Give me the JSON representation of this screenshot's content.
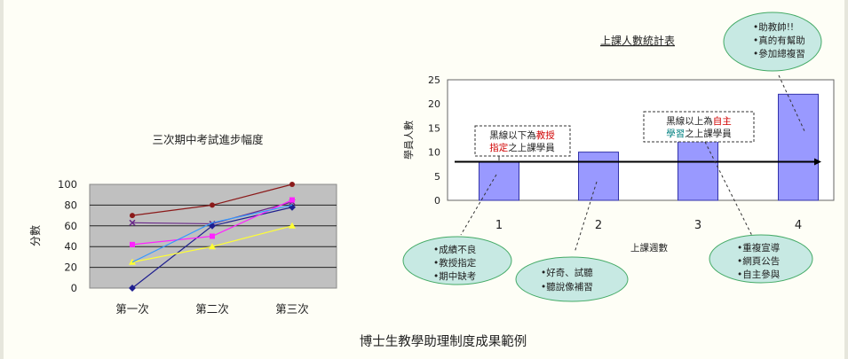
{
  "caption": "博士生教學助理制度成果範例",
  "annotations": {
    "box_below": {
      "line1_a": "黑線以下為",
      "line1_b": "教授",
      "line2_a": "指定",
      "line2_b": "之上課學員"
    },
    "box_above": {
      "line1_a": "黑線以上為",
      "line1_b": "自主",
      "line2_a": "學習",
      "line2_b": "之上課學員"
    },
    "bubbles": [
      {
        "lines": [
          "•成績不良",
          "•教授指定",
          "•期中缺考"
        ]
      },
      {
        "lines": [
          "•好奇、試聽",
          "•聽說像補習"
        ]
      },
      {
        "lines": [
          "•重複宣導",
          "•網頁公告",
          "•自主參與"
        ]
      },
      {
        "lines": [
          "•助教帥!!",
          "•真的有幫助",
          "•參加總複習"
        ]
      }
    ]
  },
  "chart_data": [
    {
      "type": "line",
      "title": "三次期中考試進步幅度",
      "xlabel": "",
      "ylabel": "分數",
      "categories": [
        "第一次",
        "第二次",
        "第三次"
      ],
      "ylim": [
        0,
        100
      ],
      "yticks": [
        0,
        20,
        40,
        60,
        80,
        100
      ],
      "grid": true,
      "legend": "none",
      "series": [
        {
          "values": [
            70,
            80,
            100
          ],
          "color": "#8b1a1a",
          "marker": "circle"
        },
        {
          "values": [
            63,
            62,
            83
          ],
          "color": "#6a2a8a",
          "marker": "x"
        },
        {
          "values": [
            0,
            60,
            78
          ],
          "color": "#1f1f8f",
          "marker": "diamond"
        },
        {
          "values": [
            42,
            50,
            85
          ],
          "color": "#ff22ff",
          "marker": "square"
        },
        {
          "values": [
            25,
            40,
            60
          ],
          "color": "#ffff33",
          "marker": "triangle"
        },
        {
          "values": [
            25,
            63,
            80
          ],
          "color": "#3399ff",
          "marker": "none"
        }
      ]
    },
    {
      "type": "bar",
      "title": "上課人數統計表",
      "xlabel": "上課週數",
      "ylabel": "學員人數",
      "categories": [
        "1",
        "2",
        "3",
        "4"
      ],
      "values": [
        8,
        10,
        15,
        22
      ],
      "ylim": [
        0,
        25
      ],
      "yticks": [
        0,
        5,
        10,
        15,
        20,
        25
      ],
      "bar_color": "#9999ff",
      "reference_line": {
        "y": 8,
        "color": "#000000"
      }
    }
  ]
}
